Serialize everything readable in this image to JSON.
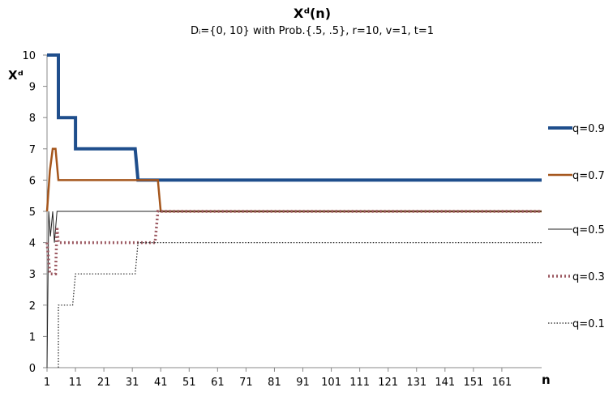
{
  "chart_data": {
    "type": "line",
    "title": "Xᵈ(n)",
    "subtitle": "Dᵢ={0, 10} with Prob.{.5, .5}, r=10, v=1, t=1",
    "xlabel": "n",
    "ylabel": "Xᵈ",
    "xlim": [
      1,
      175
    ],
    "ylim": [
      0,
      10
    ],
    "x_ticks": [
      "1",
      "11",
      "21",
      "31",
      "41",
      "51",
      "61",
      "71",
      "81",
      "91",
      "101",
      "111",
      "121",
      "131",
      "141",
      "151",
      "161"
    ],
    "y_ticks": [
      "0",
      "1",
      "2",
      "3",
      "4",
      "5",
      "6",
      "7",
      "8",
      "9",
      "10"
    ],
    "legend_position": "right",
    "series": [
      {
        "name": "q=0.9",
        "color": "#1f4e8c",
        "style": "solid-thick",
        "points": [
          [
            1,
            10
          ],
          [
            5,
            10
          ],
          [
            5,
            8
          ],
          [
            10,
            8
          ],
          [
            10,
            8
          ],
          [
            11,
            8
          ],
          [
            11,
            7
          ],
          [
            20,
            7
          ],
          [
            32,
            7
          ],
          [
            32,
            7
          ],
          [
            33,
            6
          ],
          [
            175,
            6
          ]
        ]
      },
      {
        "name": "q=0.7",
        "color": "#a5561c",
        "style": "solid-medium",
        "points": [
          [
            1,
            5
          ],
          [
            2,
            6.3
          ],
          [
            3,
            7
          ],
          [
            4,
            7
          ],
          [
            5,
            6
          ],
          [
            32,
            6
          ],
          [
            33,
            6
          ],
          [
            40,
            6
          ],
          [
            41,
            5
          ],
          [
            175,
            5
          ]
        ]
      },
      {
        "name": "q=0.5",
        "color": "#222222",
        "style": "solid-thin",
        "points": [
          [
            1,
            0
          ],
          [
            1.6,
            5
          ],
          [
            2.2,
            4.2
          ],
          [
            3,
            5
          ],
          [
            3.6,
            4
          ],
          [
            4.5,
            5
          ],
          [
            175,
            5
          ]
        ]
      },
      {
        "name": "q=0.3",
        "color": "#9c5a62",
        "style": "dotted-thick",
        "points": [
          [
            1,
            4
          ],
          [
            2,
            3
          ],
          [
            4,
            3
          ],
          [
            4.5,
            4.5
          ],
          [
            5,
            4
          ],
          [
            33,
            4
          ],
          [
            39,
            4
          ],
          [
            40,
            5
          ],
          [
            175,
            5
          ]
        ]
      },
      {
        "name": "q=0.1",
        "color": "#222222",
        "style": "dotted-thin",
        "points": [
          [
            5,
            0
          ],
          [
            5,
            2
          ],
          [
            10,
            2
          ],
          [
            10,
            2
          ],
          [
            11,
            3
          ],
          [
            32,
            3
          ],
          [
            32,
            3
          ],
          [
            33,
            4
          ],
          [
            175,
            4
          ]
        ]
      }
    ]
  }
}
